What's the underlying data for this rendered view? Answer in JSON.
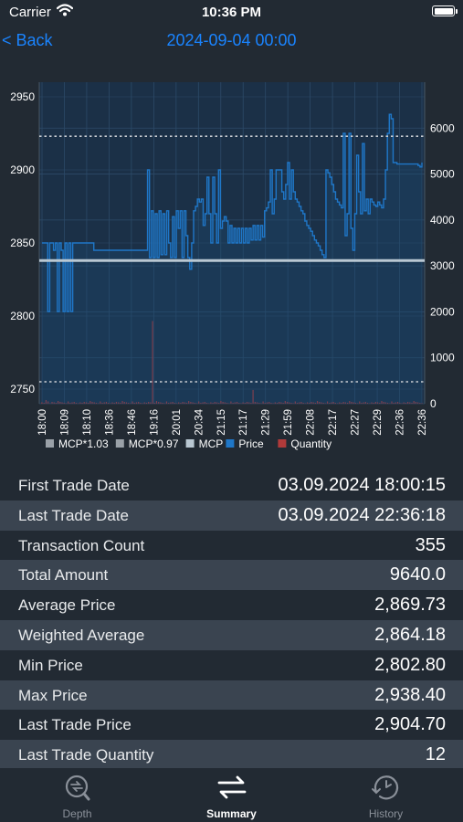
{
  "status_bar": {
    "carrier": "Carrier",
    "time": "10:36 PM"
  },
  "nav": {
    "back_label": "< Back",
    "title": "2024-09-04 00:00"
  },
  "chart_data": {
    "type": "line",
    "left_axis": {
      "min": 2740,
      "max": 2960,
      "ticks": [
        2750,
        2800,
        2850,
        2900,
        2950
      ]
    },
    "right_axis": {
      "min": 0,
      "max": 7000,
      "ticks": [
        0,
        1000,
        2000,
        3000,
        4000,
        5000,
        6000
      ]
    },
    "x_labels": [
      "18:00",
      "18:09",
      "18:10",
      "18:36",
      "18:46",
      "19:16",
      "20:01",
      "20:34",
      "21:15",
      "21:17",
      "21:29",
      "21:59",
      "22:08",
      "22:17",
      "22:27",
      "22:29",
      "22:36",
      "22:36"
    ],
    "grid": true,
    "legend_position": "bottom",
    "series": [
      {
        "name": "MCP*1.03",
        "kind": "hline",
        "value": 2923,
        "color": "#9aa1a8"
      },
      {
        "name": "MCP*0.97",
        "kind": "hline",
        "value": 2755,
        "color": "#9aa1a8"
      },
      {
        "name": "MCP",
        "kind": "hline",
        "value": 2838,
        "color": "#b9c7d2"
      },
      {
        "name": "Price",
        "kind": "line",
        "color": "#1f77c8",
        "values": [
          2850,
          2850,
          2850,
          2803,
          2850,
          2850,
          2845,
          2850,
          2803,
          2850,
          2845,
          2803,
          2850,
          2803,
          2850,
          2803,
          2850,
          2850,
          2850,
          2850,
          2850,
          2850,
          2850,
          2850,
          2850,
          2850,
          2850,
          2845,
          2845,
          2845,
          2845,
          2845,
          2845,
          2845,
          2845,
          2845,
          2845,
          2845,
          2845,
          2845,
          2845,
          2845,
          2845,
          2845,
          2845,
          2845,
          2845,
          2845,
          2845,
          2845,
          2845,
          2845,
          2845,
          2845,
          2845,
          2900,
          2840,
          2872,
          2840,
          2870,
          2840,
          2872,
          2842,
          2870,
          2842,
          2872,
          2850,
          2840,
          2868,
          2840,
          2872,
          2860,
          2872,
          2840,
          2872,
          2855,
          2840,
          2832,
          2850,
          2872,
          2875,
          2880,
          2878,
          2880,
          2862,
          2870,
          2895,
          2870,
          2850,
          2895,
          2870,
          2850,
          2900,
          2860,
          2865,
          2868,
          2865,
          2850,
          2862,
          2850,
          2860,
          2850,
          2860,
          2850,
          2860,
          2850,
          2860,
          2850,
          2860,
          2852,
          2862,
          2852,
          2862,
          2852,
          2862,
          2854,
          2872,
          2874,
          2878,
          2900,
          2870,
          2880,
          2900,
          2900,
          2900,
          2885,
          2880,
          2890,
          2905,
          2880,
          2900,
          2885,
          2880,
          2878,
          2875,
          2872,
          2870,
          2865,
          2862,
          2860,
          2858,
          2855,
          2852,
          2850,
          2848,
          2845,
          2842,
          2840,
          2900,
          2898,
          2895,
          2890,
          2885,
          2880,
          2878,
          2876,
          2874,
          2925,
          2855,
          2870,
          2925,
          2860,
          2845,
          2870,
          2910,
          2885,
          2870,
          2918,
          2872,
          2880,
          2870,
          2880,
          2878,
          2876,
          2875,
          2878,
          2876,
          2874,
          2880,
          2900,
          2925,
          2938,
          2935,
          2905,
          2905,
          2904,
          2904,
          2904,
          2904,
          2904,
          2904,
          2904,
          2904,
          2904,
          2904,
          2904,
          2903,
          2902,
          2905
        ]
      },
      {
        "name": "Quantity",
        "kind": "bar",
        "color": "#b03a3a",
        "values": [
          30,
          20,
          80,
          50,
          10,
          40,
          30,
          20,
          60,
          40,
          30,
          20,
          10,
          50,
          20,
          30,
          40,
          20,
          10,
          30,
          20,
          40,
          30,
          20,
          60,
          40,
          30,
          20,
          10,
          50,
          20,
          30,
          40,
          20,
          10,
          30,
          20,
          40,
          30,
          20,
          60,
          40,
          30,
          20,
          10,
          50,
          20,
          30,
          40,
          20,
          10,
          30,
          20,
          40,
          30,
          1800,
          20,
          60,
          40,
          30,
          20,
          10,
          50,
          20,
          30,
          40,
          20,
          10,
          30,
          20,
          40,
          30,
          20,
          60,
          40,
          30,
          20,
          10,
          50,
          20,
          30,
          40,
          20,
          10,
          30,
          20,
          40,
          30,
          20,
          60,
          40,
          30,
          20,
          10,
          50,
          20,
          30,
          40,
          20,
          10,
          30,
          20,
          40,
          30,
          20,
          300,
          40,
          30,
          20,
          10,
          50,
          20,
          30,
          40,
          20,
          10,
          30,
          20,
          40,
          30,
          20,
          60,
          40,
          30,
          20,
          10,
          50,
          20,
          30,
          40,
          20,
          10,
          30,
          20,
          40,
          30,
          20,
          60,
          40,
          30,
          20,
          10,
          50,
          20,
          30,
          40,
          20,
          10,
          30,
          20,
          40,
          30,
          20,
          60,
          40,
          30,
          20,
          10,
          50,
          20,
          30,
          40,
          20,
          10,
          30,
          20,
          40,
          30,
          20,
          60,
          40,
          30,
          20,
          10,
          50,
          20,
          30,
          40,
          20,
          10,
          30,
          20,
          40,
          30,
          20,
          60,
          40,
          30,
          20,
          10
        ]
      }
    ]
  },
  "summary": [
    {
      "label": "First Trade Date",
      "value": "03.09.2024 18:00:15"
    },
    {
      "label": "Last Trade Date",
      "value": "03.09.2024 22:36:18"
    },
    {
      "label": "Transaction Count",
      "value": "355"
    },
    {
      "label": "Total Amount",
      "value": "9640.0"
    },
    {
      "label": "Average Price",
      "value": "2,869.73"
    },
    {
      "label": "Weighted Average",
      "value": "2,864.18"
    },
    {
      "label": "Min Price",
      "value": "2,802.80"
    },
    {
      "label": "Max Price",
      "value": "2,938.40"
    },
    {
      "label": "Last Trade Price",
      "value": "2,904.70"
    },
    {
      "label": "Last Trade Quantity",
      "value": "12"
    }
  ],
  "tabs": [
    {
      "label": "Depth",
      "icon": "depth-icon"
    },
    {
      "label": "Summary",
      "icon": "summary-icon"
    },
    {
      "label": "History",
      "icon": "history-icon"
    }
  ]
}
